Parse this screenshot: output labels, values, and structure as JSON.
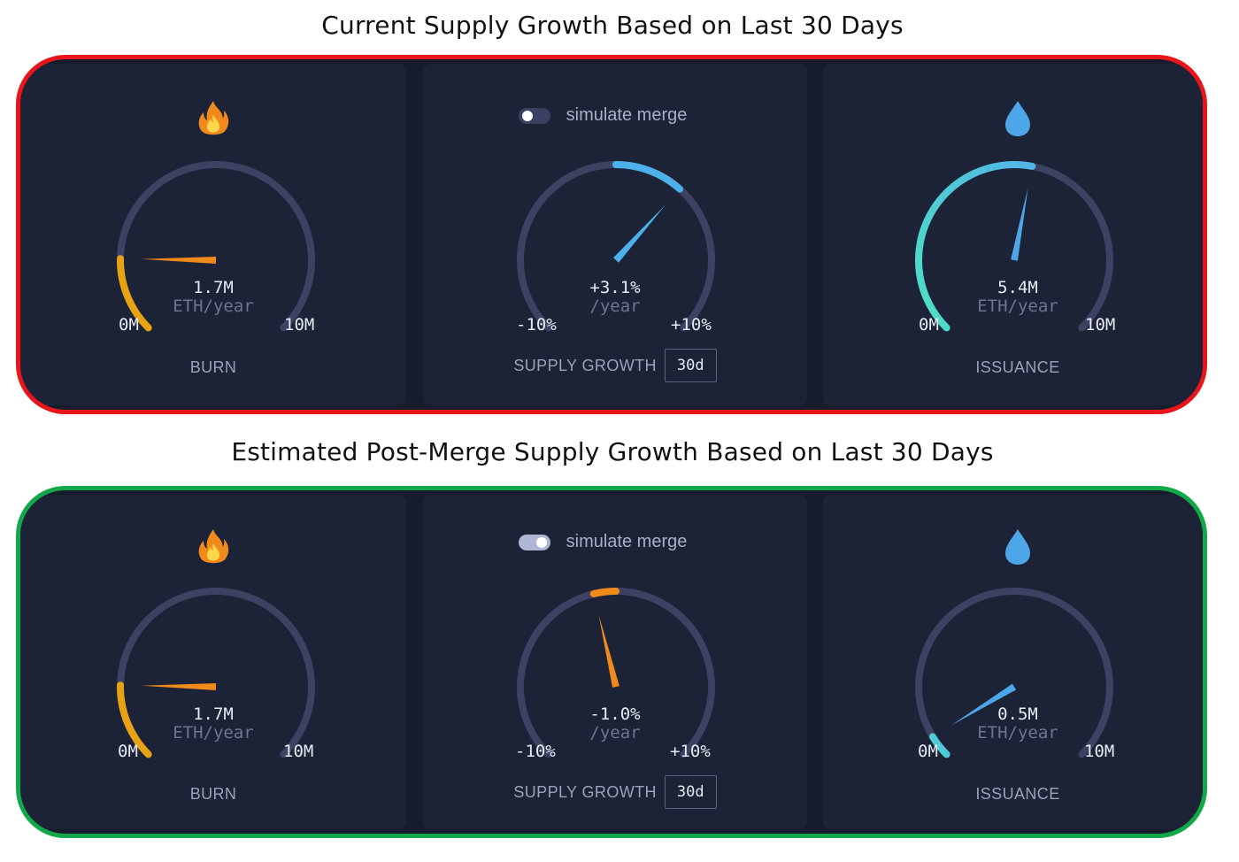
{
  "titles": {
    "current": "Current Supply Growth Based on Last 30 Days",
    "post_merge": "Estimated Post-Merge Supply Growth Based on Last 30 Days"
  },
  "colors": {
    "current_frame": "#e8151b",
    "post_merge_frame": "#12a84a",
    "track": "#3d4263",
    "burn_arc": "#e8a313",
    "burn_needle": "#f08a1a",
    "supply_positive": "#4db0ea",
    "supply_negative": "#f08a1a",
    "issuance_arc_start": "#4de0c4",
    "issuance_arc_end": "#51b6e6",
    "issuance_needle": "#4da6e8"
  },
  "panels": [
    {
      "burn": {
        "icon": "fire-icon",
        "value": "1.7M",
        "unit": "ETH/year",
        "min_label": "0M",
        "max_label": "10M",
        "label": "BURN",
        "fraction": 0.17
      },
      "supply": {
        "toggle_label": "simulate merge",
        "toggle_on": false,
        "value": "+3.1%",
        "unit": "/year",
        "min_label": "-10%",
        "max_label": "+10%",
        "label": "SUPPLY GROWTH",
        "period": "30d",
        "percent": 3.1
      },
      "issuance": {
        "icon": "droplet-icon",
        "value": "5.4M",
        "unit": "ETH/year",
        "min_label": "0M",
        "max_label": "10M",
        "label": "ISSUANCE",
        "fraction": 0.54
      }
    },
    {
      "burn": {
        "icon": "fire-icon",
        "value": "1.7M",
        "unit": "ETH/year",
        "min_label": "0M",
        "max_label": "10M",
        "label": "BURN",
        "fraction": 0.17
      },
      "supply": {
        "toggle_label": "simulate merge",
        "toggle_on": true,
        "value": "-1.0%",
        "unit": "/year",
        "min_label": "-10%",
        "max_label": "+10%",
        "label": "SUPPLY GROWTH",
        "period": "30d",
        "percent": -1.0
      },
      "issuance": {
        "icon": "droplet-icon",
        "value": "0.5M",
        "unit": "ETH/year",
        "min_label": "0M",
        "max_label": "10M",
        "label": "ISSUANCE",
        "fraction": 0.05
      }
    }
  ]
}
